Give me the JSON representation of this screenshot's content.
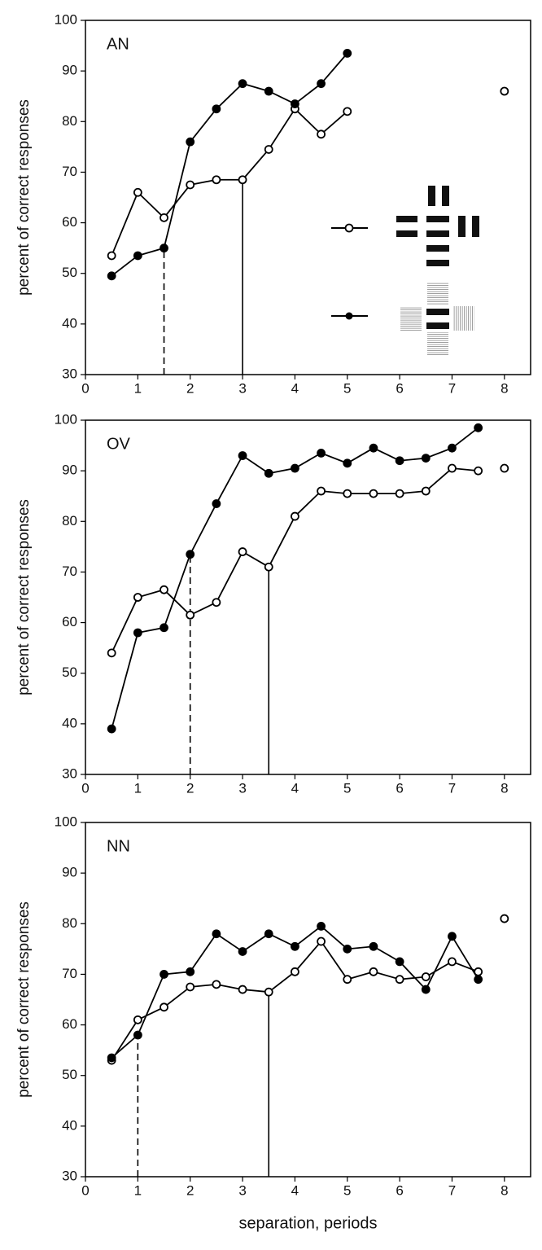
{
  "chart_data": [
    {
      "type": "line",
      "label": "AN",
      "ylabel": "percent of correct responses",
      "xlim": [
        0,
        8.5
      ],
      "ylim": [
        30,
        100
      ],
      "xticks": [
        0,
        1,
        2,
        3,
        4,
        5,
        6,
        7,
        8
      ],
      "yticks": [
        30,
        40,
        50,
        60,
        70,
        80,
        90,
        100
      ],
      "series": [
        {
          "marker": "open",
          "color": "#000",
          "x": [
            0.5,
            1,
            1.5,
            2,
            2.5,
            3,
            3.5,
            4,
            4.5,
            5
          ],
          "values": [
            53.5,
            66,
            61,
            67.5,
            68.5,
            68.5,
            74.5,
            82.5,
            77.5,
            82
          ]
        },
        {
          "marker": "filled",
          "color": "#000",
          "x": [
            0.5,
            1,
            1.5,
            2,
            2.5,
            3,
            3.5,
            4,
            4.5,
            5
          ],
          "values": [
            49.5,
            53.5,
            55,
            76,
            82.5,
            87.5,
            86,
            83.5,
            87.5,
            93.5
          ]
        },
        {
          "marker": "open",
          "color": "#000",
          "x": [
            8
          ],
          "values": [
            86
          ]
        }
      ],
      "vlines": [
        {
          "x": 1.5,
          "value": 55,
          "style": "dashed"
        },
        {
          "x": 3,
          "value": 68.5,
          "style": "solid"
        }
      ]
    },
    {
      "type": "line",
      "label": "OV",
      "ylabel": "percent of correct responses",
      "xlim": [
        0,
        8.5
      ],
      "ylim": [
        30,
        100
      ],
      "xticks": [
        0,
        1,
        2,
        3,
        4,
        5,
        6,
        7,
        8
      ],
      "yticks": [
        30,
        40,
        50,
        60,
        70,
        80,
        90,
        100
      ],
      "series": [
        {
          "marker": "open",
          "color": "#000",
          "x": [
            0.5,
            1,
            1.5,
            2,
            2.5,
            3,
            3.5,
            4,
            4.5,
            5,
            5.5,
            6,
            6.5,
            7,
            7.5
          ],
          "values": [
            54,
            65,
            66.5,
            61.5,
            64,
            74,
            71,
            81,
            86,
            85.5,
            85.5,
            85.5,
            86,
            90.5,
            90
          ]
        },
        {
          "marker": "filled",
          "color": "#000",
          "x": [
            0.5,
            1,
            1.5,
            2,
            2.5,
            3,
            3.5,
            4,
            4.5,
            5,
            5.5,
            6,
            6.5,
            7,
            7.5
          ],
          "values": [
            39,
            58,
            59,
            73.5,
            83.5,
            93,
            89.5,
            90.5,
            93.5,
            91.5,
            94.5,
            92,
            92.5,
            94.5,
            98.5
          ]
        },
        {
          "marker": "open",
          "color": "#000",
          "x": [
            8
          ],
          "values": [
            90.5
          ]
        }
      ],
      "vlines": [
        {
          "x": 2,
          "value": 73.5,
          "style": "dashed"
        },
        {
          "x": 3.5,
          "value": 71,
          "style": "solid"
        }
      ]
    },
    {
      "type": "line",
      "label": "NN",
      "ylabel": "percent of correct responses",
      "xlabel": "separation, periods",
      "xlim": [
        0,
        8.5
      ],
      "ylim": [
        30,
        100
      ],
      "xticks": [
        0,
        1,
        2,
        3,
        4,
        5,
        6,
        7,
        8
      ],
      "yticks": [
        30,
        40,
        50,
        60,
        70,
        80,
        90,
        100
      ],
      "series": [
        {
          "marker": "open",
          "color": "#000",
          "x": [
            0.5,
            1,
            1.5,
            2,
            2.5,
            3,
            3.5,
            4,
            4.5,
            5,
            5.5,
            6,
            6.5,
            7,
            7.5
          ],
          "values": [
            53,
            61,
            63.5,
            67.5,
            68,
            67,
            66.5,
            70.5,
            76.5,
            69,
            70.5,
            69,
            69.5,
            72.5,
            70.5
          ]
        },
        {
          "marker": "filled",
          "color": "#000",
          "x": [
            0.5,
            1,
            1.5,
            2,
            2.5,
            3,
            3.5,
            4,
            4.5,
            5,
            5.5,
            6,
            6.5,
            7,
            7.5
          ],
          "values": [
            53.5,
            58,
            70,
            70.5,
            78,
            74.5,
            78,
            75.5,
            79.5,
            75,
            75.5,
            72.5,
            67,
            77.5,
            69
          ]
        },
        {
          "marker": "open",
          "color": "#000",
          "x": [
            8
          ],
          "values": [
            81
          ]
        }
      ],
      "vlines": [
        {
          "x": 1,
          "value": 58,
          "style": "dashed"
        },
        {
          "x": 3.5,
          "value": 66.5,
          "style": "solid"
        }
      ]
    }
  ]
}
